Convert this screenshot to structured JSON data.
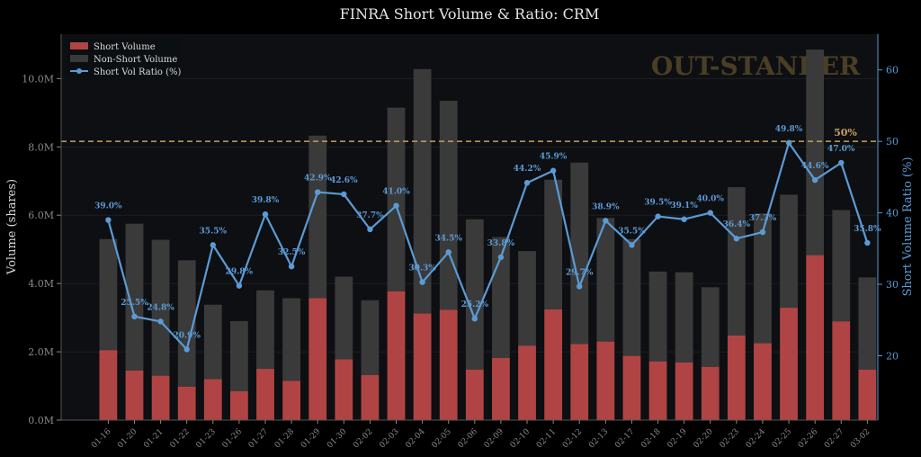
{
  "chart_data": {
    "type": "bar+line",
    "title": "FINRA Short Volume & Ratio: CRM",
    "ylabel": "Volume (shares)",
    "y2label": "Short Volume Ratio (%)",
    "ylim": [
      0,
      11300000
    ],
    "y2lim": [
      11.0,
      65.0
    ],
    "yticks": [
      {
        "value": 0,
        "label": "0.0M"
      },
      {
        "value": 2000000,
        "label": "2.0M"
      },
      {
        "value": 4000000,
        "label": "4.0M"
      },
      {
        "value": 6000000,
        "label": "6.0M"
      },
      {
        "value": 8000000,
        "label": "8.0M"
      },
      {
        "value": 10000000,
        "label": "10.0M"
      }
    ],
    "y2ticks": [
      {
        "value": 20,
        "label": "20"
      },
      {
        "value": 30,
        "label": "30"
      },
      {
        "value": 40,
        "label": "40"
      },
      {
        "value": 50,
        "label": "50"
      },
      {
        "value": 60,
        "label": "60"
      }
    ],
    "categories": [
      "01-16",
      "01-20",
      "01-21",
      "01-22",
      "01-23",
      "01-26",
      "01-27",
      "01-28",
      "01-29",
      "01-30",
      "02-02",
      "02-03",
      "02-04",
      "02-05",
      "02-06",
      "02-09",
      "02-10",
      "02-11",
      "02-12",
      "02-13",
      "02-17",
      "02-18",
      "02-19",
      "02-20",
      "02-23",
      "02-24",
      "02-25",
      "02-26",
      "02-27",
      "03-02"
    ],
    "short_volume": [
      2050000,
      1450000,
      1300000,
      980000,
      1200000,
      850000,
      1500000,
      1150000,
      3570000,
      1780000,
      1320000,
      3770000,
      3120000,
      3230000,
      1480000,
      1820000,
      2180000,
      3240000,
      2230000,
      2300000,
      1880000,
      1720000,
      1690000,
      1560000,
      2480000,
      2250000,
      3290000,
      4830000,
      2890000,
      1480000
    ],
    "total_volume": [
      5300000,
      5750000,
      5280000,
      4680000,
      3380000,
      2900000,
      3800000,
      3570000,
      8330000,
      4200000,
      3510000,
      9150000,
      10280000,
      9350000,
      5880000,
      5360000,
      4950000,
      7040000,
      7540000,
      5920000,
      5300000,
      4350000,
      4330000,
      3890000,
      6820000,
      6050000,
      6600000,
      10850000,
      6150000,
      4180000
    ],
    "ratio": [
      39.0,
      25.5,
      24.8,
      20.9,
      35.5,
      29.8,
      39.8,
      32.5,
      42.9,
      42.6,
      37.7,
      41.0,
      30.3,
      34.5,
      25.2,
      33.8,
      44.2,
      45.9,
      29.7,
      38.9,
      35.5,
      39.5,
      39.1,
      40.0,
      36.4,
      37.3,
      49.8,
      44.6,
      47.0,
      35.8
    ],
    "ratio_labels": [
      "39.0%",
      "25.5%",
      "24.8%",
      "20.9%",
      "35.5%",
      "29.8%",
      "39.8%",
      "32.5%",
      "42.9%",
      "42.6%",
      "37.7%",
      "41.0%",
      "30.3%",
      "34.5%",
      "25.2%",
      "33.8%",
      "44.2%",
      "45.9%",
      "29.7%",
      "38.9%",
      "35.5%",
      "39.5%",
      "39.1%",
      "40.0%",
      "36.4%",
      "37.3%",
      "49.8%",
      "44.6%",
      "47.0%",
      "35.8%"
    ],
    "threshold": {
      "value": 50,
      "label": "50%"
    },
    "legend": {
      "position": "top-left",
      "entries": [
        "Short Volume",
        "Non-Short Volume",
        "Short Vol Ratio (%)"
      ]
    },
    "watermark": "OUT-STANDER",
    "colors": {
      "background": "#000000",
      "plot_background": "#0d0f12",
      "short": "#b04444",
      "non_short": "#3a3a3a",
      "ratio_line": "#5b9bd5",
      "threshold": "#c8a060",
      "text": "#d8d8d8",
      "tick": "#8a8a8a",
      "watermark": "#4a3e26"
    }
  }
}
